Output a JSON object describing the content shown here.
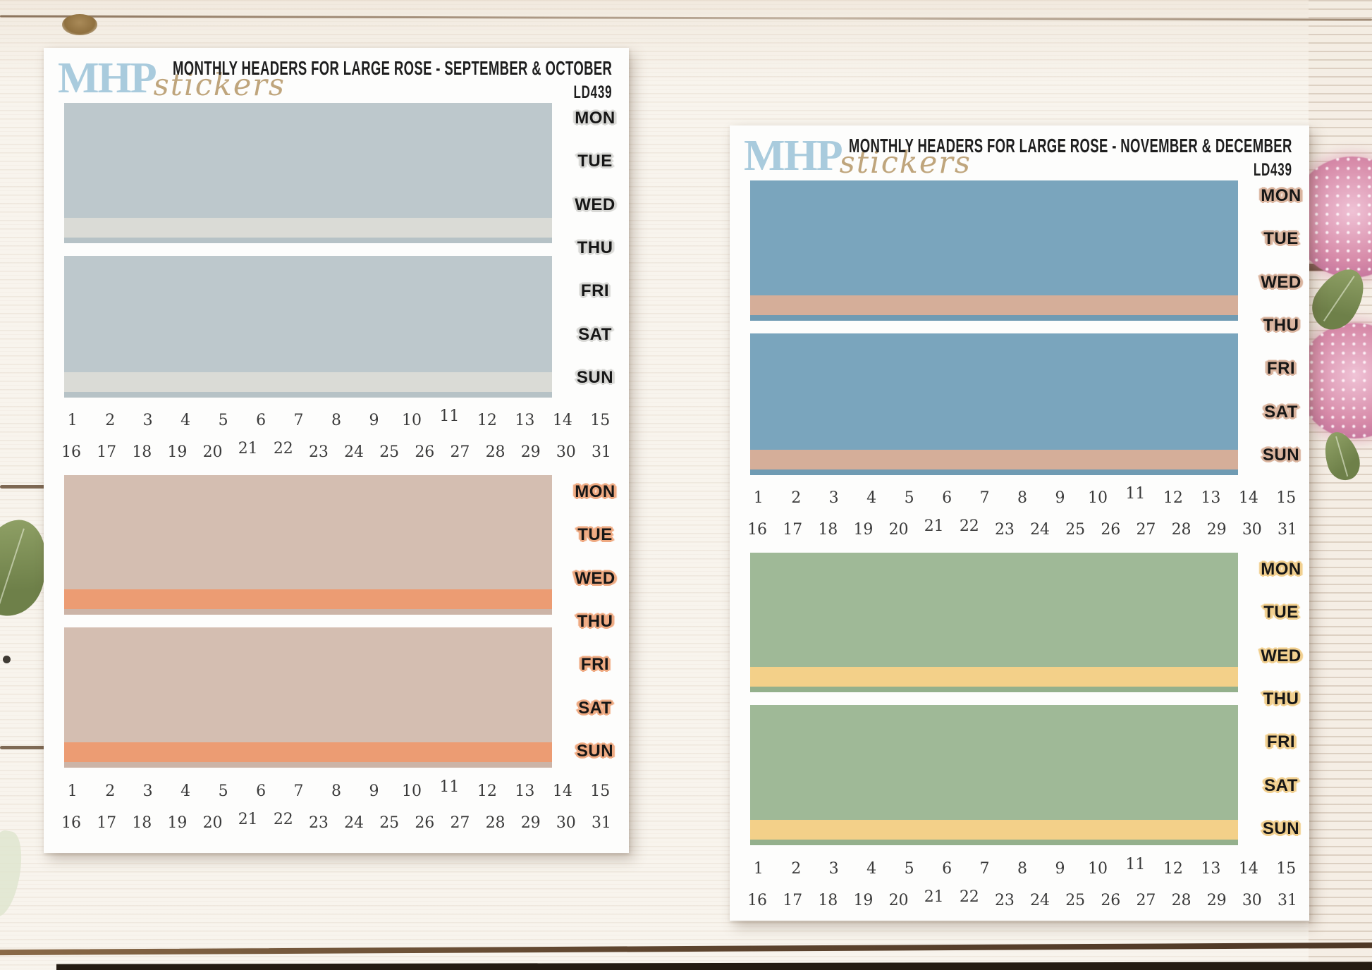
{
  "photo": {
    "background_wood_color": "#f8f4ed",
    "plank_seam_color": "#6b5139",
    "flower_color": "#d78ba9",
    "leaf_color": "#7f9158",
    "bottom_edge_color": "#241b12"
  },
  "shared": {
    "days": [
      "MON",
      "TUE",
      "WED",
      "THU",
      "FRI",
      "SAT",
      "SUN"
    ],
    "dates_row1": [
      "1",
      "2",
      "3",
      "4",
      "5",
      "6",
      "7",
      "8",
      "9",
      "10",
      "11",
      "12",
      "13",
      "14",
      "15"
    ],
    "dates_row2": [
      "16",
      "17",
      "18",
      "19",
      "20",
      "21",
      "22",
      "23",
      "24",
      "25",
      "26",
      "27",
      "28",
      "29",
      "30",
      "31"
    ]
  },
  "sheets": [
    {
      "logo": {
        "mhp": "MHP",
        "script": "stickers",
        "mhp_color": "#a9cbdd",
        "script_color": "#bfa57c"
      },
      "title": "MONTHLY HEADERS FOR LARGE ROSE - SEPTEMBER & OCTOBER",
      "code": "LD439",
      "sets": [
        {
          "month": "september",
          "block_color": "#bdc8cc",
          "strip_color": "#dadbd6",
          "sliver_color": "#b6c2c6",
          "label_halo": "#d9d9d6"
        },
        {
          "month": "october",
          "block_color": "#d4beb1",
          "strip_color": "#ec9c73",
          "sliver_color": "#ccb4a7",
          "label_halo": "#efaa82"
        }
      ]
    },
    {
      "logo": {
        "mhp": "MHP",
        "script": "stickers",
        "mhp_color": "#a9cbdd",
        "script_color": "#bfa57c"
      },
      "title": "MONTHLY HEADERS FOR LARGE ROSE - NOVEMBER & DECEMBER",
      "code": "LD439",
      "sets": [
        {
          "month": "november",
          "block_color": "#7aa5bd",
          "strip_color": "#d5ae99",
          "sliver_color": "#6f9bb3",
          "label_halo": "#dab49e"
        },
        {
          "month": "december",
          "block_color": "#9fb997",
          "strip_color": "#f3d089",
          "sliver_color": "#94b08c",
          "label_halo": "#f1cf8e"
        }
      ]
    }
  ]
}
